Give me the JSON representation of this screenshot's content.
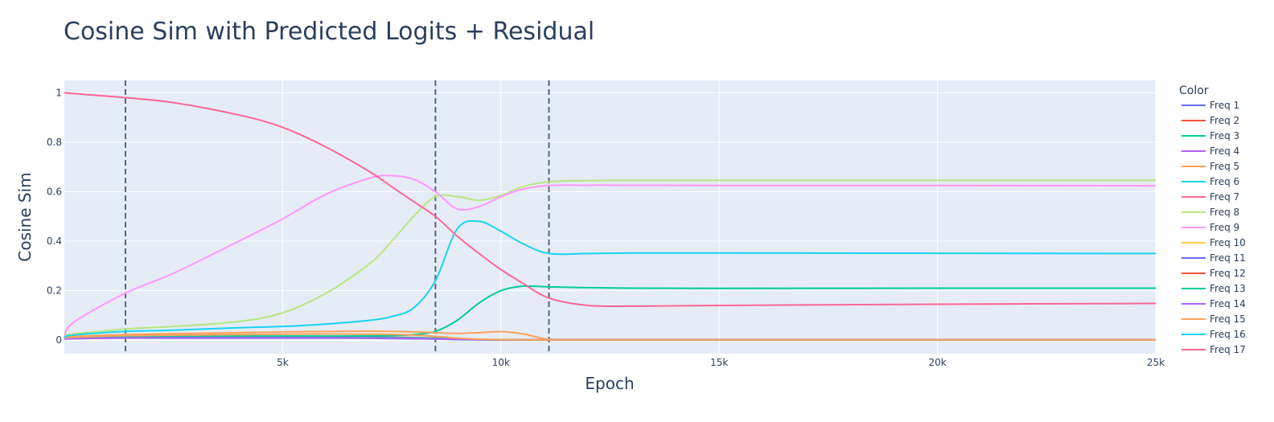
{
  "chart_data": {
    "type": "line",
    "title": "Cosine Sim with Predicted Logits + Residual",
    "xlabel": "Epoch",
    "ylabel": "Cosine Sim",
    "xlim": [
      0,
      25000
    ],
    "ylim": [
      -0.055,
      1.05
    ],
    "x_ticks": [
      5000,
      10000,
      15000,
      20000,
      25000
    ],
    "x_tick_labels": [
      "5k",
      "10k",
      "15k",
      "20k",
      "25k"
    ],
    "y_ticks": [
      0,
      0.2,
      0.4,
      0.6,
      0.8,
      1
    ],
    "y_tick_labels": [
      "0",
      "0.2",
      "0.4",
      "0.6",
      "0.8",
      "1"
    ],
    "grid": true,
    "legend_title": "Color",
    "legend_position": "right",
    "vlines": [
      1400,
      8500,
      11100
    ],
    "x": [
      0,
      200,
      1400,
      2500,
      4000,
      5000,
      6000,
      7000,
      7500,
      8000,
      8500,
      9000,
      9500,
      10000,
      10500,
      11100,
      12000,
      13000,
      15000,
      20000,
      25000
    ],
    "series": [
      {
        "name": "Freq 1",
        "color": "#636efa",
        "values": [
          0.005,
          0.006,
          0.008,
          0.008,
          0.008,
          0.008,
          0.008,
          0.007,
          0.006,
          0.005,
          0.004,
          0.002,
          0.001,
          0.001,
          0.001,
          0.001,
          0.001,
          0.001,
          0.001,
          0.001,
          0.001
        ]
      },
      {
        "name": "Freq 2",
        "color": "#EF553B",
        "values": [
          0.005,
          0.008,
          0.012,
          0.013,
          0.013,
          0.013,
          0.013,
          0.012,
          0.011,
          0.01,
          0.008,
          0.004,
          0.002,
          0.001,
          0.001,
          0.001,
          0.001,
          0.001,
          0.001,
          0.001,
          0.001
        ]
      },
      {
        "name": "Freq 3",
        "color": "#00cc96",
        "values": [
          0.008,
          0.01,
          0.014,
          0.015,
          0.016,
          0.016,
          0.016,
          0.017,
          0.018,
          0.022,
          0.035,
          0.08,
          0.15,
          0.2,
          0.218,
          0.215,
          0.212,
          0.21,
          0.209,
          0.21,
          0.21
        ]
      },
      {
        "name": "Freq 4",
        "color": "#ab63fa",
        "values": [
          0.004,
          0.006,
          0.009,
          0.01,
          0.01,
          0.01,
          0.01,
          0.009,
          0.008,
          0.007,
          0.005,
          0.003,
          0.002,
          0.001,
          0.001,
          0.001,
          0.001,
          0.001,
          0.001,
          0.001,
          0.001
        ]
      },
      {
        "name": "Freq 5",
        "color": "#FFA15A",
        "values": [
          0.01,
          0.015,
          0.022,
          0.026,
          0.03,
          0.033,
          0.035,
          0.036,
          0.035,
          0.033,
          0.03,
          0.027,
          0.03,
          0.034,
          0.025,
          0.003,
          0.001,
          0.001,
          0.001,
          0.001,
          0.001
        ]
      },
      {
        "name": "Freq 6",
        "color": "#19d3f3",
        "values": [
          0.004,
          0.006,
          0.009,
          0.01,
          0.01,
          0.01,
          0.01,
          0.009,
          0.008,
          0.007,
          0.005,
          0.003,
          0.002,
          0.001,
          0.001,
          0.001,
          0.001,
          0.001,
          0.001,
          0.001,
          0.001
        ]
      },
      {
        "name": "Freq 7",
        "color": "#FF6692",
        "values": [
          0.005,
          0.007,
          0.01,
          0.011,
          0.011,
          0.011,
          0.011,
          0.01,
          0.009,
          0.008,
          0.006,
          0.003,
          0.002,
          0.001,
          0.001,
          0.001,
          0.001,
          0.001,
          0.001,
          0.001,
          0.001
        ]
      },
      {
        "name": "Freq 8",
        "color": "#B6E880",
        "values": [
          0.018,
          0.025,
          0.045,
          0.055,
          0.075,
          0.11,
          0.19,
          0.31,
          0.4,
          0.5,
          0.58,
          0.58,
          0.565,
          0.585,
          0.62,
          0.64,
          0.645,
          0.646,
          0.646,
          0.646,
          0.646
        ]
      },
      {
        "name": "Freq 9",
        "color": "#FF97FF",
        "values": [
          0.005,
          0.07,
          0.19,
          0.27,
          0.4,
          0.49,
          0.59,
          0.655,
          0.665,
          0.65,
          0.6,
          0.53,
          0.54,
          0.58,
          0.61,
          0.625,
          0.626,
          0.626,
          0.625,
          0.625,
          0.624
        ]
      },
      {
        "name": "Freq 10",
        "color": "#FECB52",
        "values": [
          0.004,
          0.006,
          0.009,
          0.01,
          0.01,
          0.01,
          0.01,
          0.009,
          0.008,
          0.007,
          0.005,
          0.003,
          0.002,
          0.001,
          0.001,
          0.001,
          0.001,
          0.001,
          0.001,
          0.001,
          0.001
        ]
      },
      {
        "name": "Freq 11",
        "color": "#636efa",
        "values": [
          0.005,
          0.007,
          0.01,
          0.011,
          0.011,
          0.011,
          0.011,
          0.01,
          0.009,
          0.008,
          0.006,
          0.003,
          0.002,
          0.001,
          0.001,
          0.001,
          0.001,
          0.001,
          0.001,
          0.001,
          0.001
        ]
      },
      {
        "name": "Freq 12",
        "color": "#EF553B",
        "values": [
          0.004,
          0.006,
          0.009,
          0.01,
          0.01,
          0.01,
          0.01,
          0.009,
          0.008,
          0.007,
          0.005,
          0.003,
          0.002,
          0.001,
          0.001,
          0.001,
          0.001,
          0.001,
          0.001,
          0.001,
          0.001
        ]
      },
      {
        "name": "Freq 13",
        "color": "#00cc96",
        "values": [
          0.005,
          0.007,
          0.011,
          0.012,
          0.012,
          0.012,
          0.012,
          0.011,
          0.01,
          0.009,
          0.007,
          0.003,
          0.002,
          0.001,
          0.001,
          0.001,
          0.001,
          0.001,
          0.001,
          0.001,
          0.001
        ]
      },
      {
        "name": "Freq 14",
        "color": "#ab63fa",
        "values": [
          0.004,
          0.006,
          0.009,
          0.01,
          0.01,
          0.01,
          0.01,
          0.009,
          0.008,
          0.007,
          0.005,
          0.003,
          0.002,
          0.001,
          0.001,
          0.001,
          0.001,
          0.001,
          0.001,
          0.001,
          0.001
        ]
      },
      {
        "name": "Freq 15",
        "color": "#FFA15A",
        "values": [
          0.008,
          0.012,
          0.018,
          0.02,
          0.022,
          0.024,
          0.025,
          0.024,
          0.023,
          0.02,
          0.015,
          0.008,
          0.004,
          0.002,
          0.001,
          0.001,
          0.001,
          0.001,
          0.001,
          0.001,
          0.001
        ]
      },
      {
        "name": "Freq 16",
        "color": "#19d3f3",
        "values": [
          0.01,
          0.02,
          0.035,
          0.04,
          0.05,
          0.055,
          0.065,
          0.08,
          0.095,
          0.13,
          0.24,
          0.45,
          0.48,
          0.44,
          0.39,
          0.35,
          0.35,
          0.352,
          0.352,
          0.351,
          0.35
        ]
      },
      {
        "name": "Freq 17",
        "color": "#FF6692",
        "values": [
          1.0,
          0.997,
          0.98,
          0.96,
          0.91,
          0.86,
          0.78,
          0.68,
          0.62,
          0.56,
          0.5,
          0.42,
          0.35,
          0.285,
          0.23,
          0.17,
          0.14,
          0.137,
          0.14,
          0.145,
          0.148
        ]
      }
    ]
  }
}
